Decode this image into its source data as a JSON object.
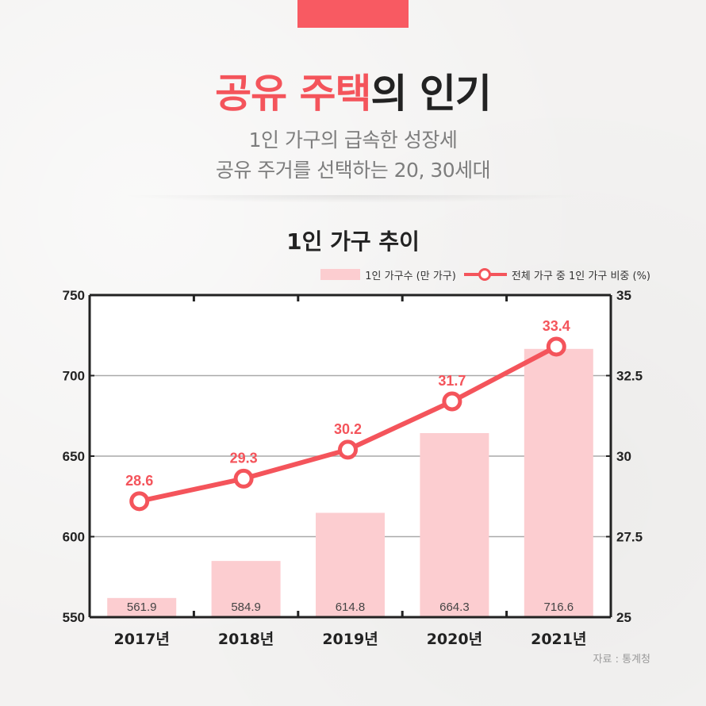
{
  "header": {
    "title_accent": "공유 주택",
    "title_rest": "의 인기",
    "subtitle_line1": "1인 가구의 급속한 성장세",
    "subtitle_line2": "공유 주거를 선택하는 20, 30세대"
  },
  "colors": {
    "accent": "#f4545b",
    "bar": "#fccdd0",
    "tab": "#f85a62"
  },
  "chart_data": {
    "type": "bar",
    "title": "1인 가구 추이",
    "categories": [
      "2017년",
      "2018년",
      "2019년",
      "2020년",
      "2021년"
    ],
    "series": [
      {
        "name": "1인 가구수 (만 가구)",
        "type": "bar",
        "axis": "left",
        "values": [
          561.9,
          584.9,
          614.8,
          664.3,
          716.6
        ],
        "labels": [
          "561.9",
          "584.9",
          "614.8",
          "664.3",
          "716.6"
        ]
      },
      {
        "name": "전체 가구 중 1인 가구 비중 (%)",
        "type": "line",
        "axis": "right",
        "values": [
          28.6,
          29.3,
          30.2,
          31.7,
          33.4
        ],
        "labels": [
          "28.6",
          "29.3",
          "30.2",
          "31.7",
          "33.4"
        ]
      }
    ],
    "y_left": {
      "range": [
        550,
        750
      ],
      "ticks": [
        550,
        600,
        650,
        700,
        750
      ],
      "tick_labels": [
        "550",
        "600",
        "650",
        "700",
        "750"
      ]
    },
    "y_right": {
      "range": [
        25,
        35
      ],
      "ticks": [
        25,
        27.5,
        30,
        32.5,
        35
      ],
      "tick_labels": [
        "25",
        "27.5",
        "30",
        "32.5",
        "35"
      ]
    },
    "grid": true,
    "legend_position": "top-right"
  },
  "source": "자료 : 통계청"
}
